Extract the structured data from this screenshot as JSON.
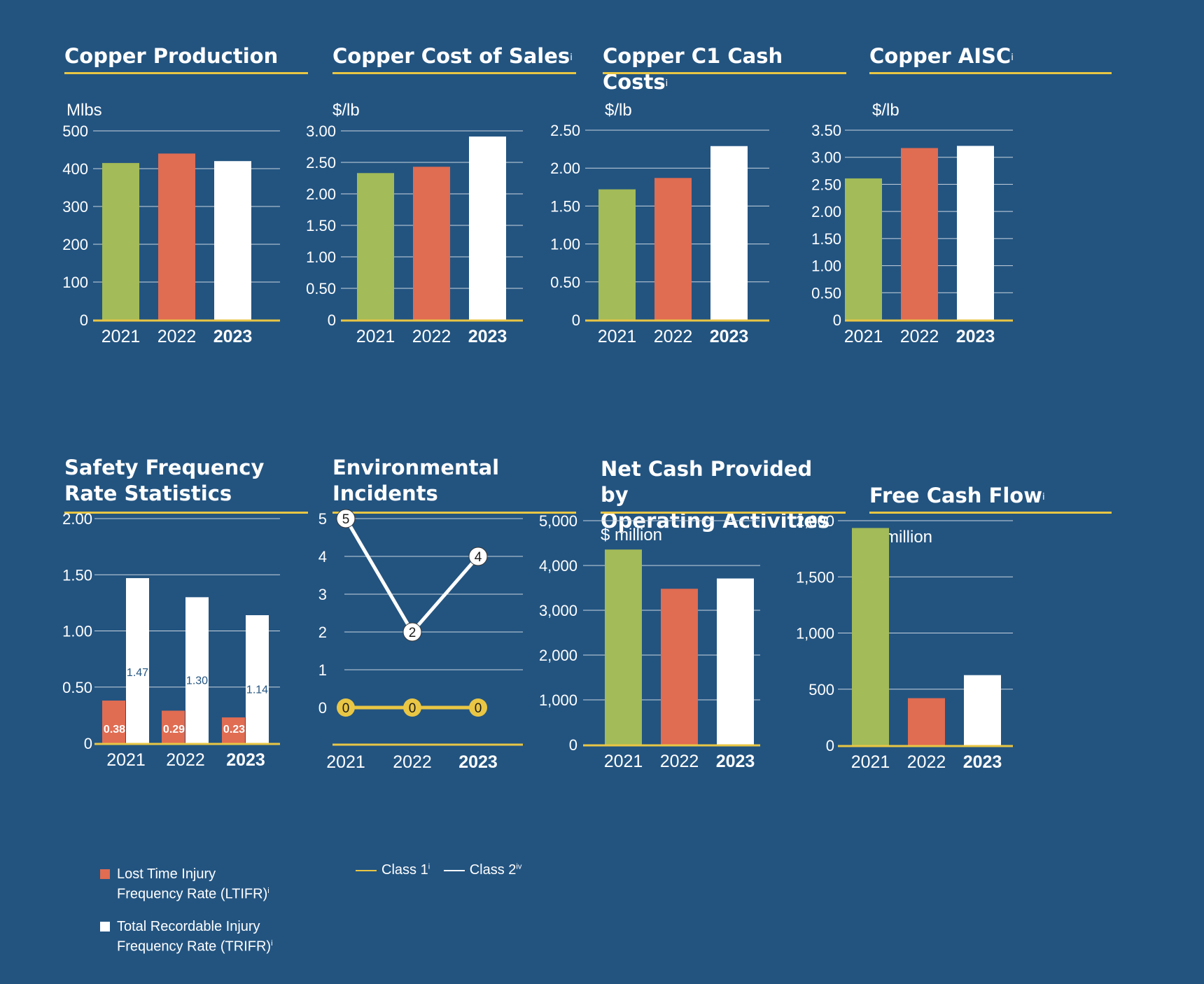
{
  "colors": {
    "background": "#235480",
    "rule": "#e9c644",
    "y2021": "#a3bb58",
    "y2022": "#e06c52",
    "y2023": "#ffffff",
    "grid": "#c9d3de",
    "class1": "#e9c644",
    "class2": "#ffffff",
    "label_dark": "#235480"
  },
  "panels": {
    "p1": {
      "title": "Copper Production",
      "sup": "",
      "unit": "Mlbs"
    },
    "p2": {
      "title": "Copper Cost of Sales",
      "sup": "i",
      "unit": "$/lb"
    },
    "p3": {
      "title": "Copper C1 Cash Costs",
      "sup": "i",
      "unit": "$/lb"
    },
    "p4": {
      "title": "Copper AISC",
      "sup": "i",
      "unit": "$/lb"
    },
    "p5": {
      "title_line1": "Safety Frequency",
      "title_line2": "Rate Statistics"
    },
    "p6": {
      "title_line1": "Environmental",
      "title_line2": "Incidents"
    },
    "p7": {
      "title_line1": "Net Cash Provided by",
      "title_line2": "Operating Activities",
      "unit": "$ million"
    },
    "p8": {
      "title": "Free Cash Flow",
      "sup": "i",
      "unit": "$ million"
    }
  },
  "legend_safety": {
    "ltifr_line1": "Lost Time Injury",
    "ltifr_line2": "Frequency Rate (LTIFR)",
    "ltifr_sup": "i",
    "trifr_line1": "Total Recordable Injury",
    "trifr_line2": "Frequency Rate (TRIFR)",
    "trifr_sup": "i"
  },
  "legend_env": {
    "class1": "Class 1",
    "class1_sup": "i",
    "class2": "Class 2",
    "class2_sup": "iv"
  },
  "chart_data": [
    {
      "id": "copper-production",
      "type": "bar",
      "title": "Copper Production",
      "ylabel": "Mlbs",
      "categories": [
        "2021",
        "2022",
        "2023"
      ],
      "values": [
        415,
        440,
        420
      ],
      "ylim": [
        0,
        500
      ],
      "yticks": [
        0,
        100,
        200,
        300,
        400,
        500
      ],
      "ytick_labels": [
        "0",
        "100",
        "200",
        "300",
        "400",
        "500"
      ]
    },
    {
      "id": "copper-cost-of-sales",
      "type": "bar",
      "title": "Copper Cost of Sales",
      "ylabel": "$/lb",
      "categories": [
        "2021",
        "2022",
        "2023"
      ],
      "values": [
        2.33,
        2.43,
        2.91
      ],
      "ylim": [
        0,
        3.0
      ],
      "yticks": [
        0,
        0.5,
        1.0,
        1.5,
        2.0,
        2.5,
        3.0
      ],
      "ytick_labels": [
        "0",
        "0.50",
        "1.00",
        "1.50",
        "2.00",
        "2.50",
        "3.00"
      ]
    },
    {
      "id": "copper-c1-cash-costs",
      "type": "bar",
      "title": "Copper C1 Cash Costs",
      "ylabel": "$/lb",
      "categories": [
        "2021",
        "2022",
        "2023"
      ],
      "values": [
        1.72,
        1.87,
        2.29
      ],
      "ylim": [
        0,
        2.5
      ],
      "yticks": [
        0,
        0.5,
        1.0,
        1.5,
        2.0,
        2.5
      ],
      "ytick_labels": [
        "0",
        "0.50",
        "1.00",
        "1.50",
        "2.00",
        "2.50"
      ]
    },
    {
      "id": "copper-aisc",
      "type": "bar",
      "title": "Copper AISC",
      "ylabel": "$/lb",
      "categories": [
        "2021",
        "2022",
        "2023"
      ],
      "values": [
        2.61,
        3.17,
        3.21
      ],
      "ylim": [
        0,
        3.5
      ],
      "yticks": [
        0,
        0.5,
        1.0,
        1.5,
        2.0,
        2.5,
        3.0,
        3.5
      ],
      "ytick_labels": [
        "0",
        "0.50",
        "1.00",
        "1.50",
        "2.00",
        "2.50",
        "3.00",
        "3.50"
      ]
    },
    {
      "id": "safety-frequency",
      "type": "bar",
      "title": "Safety Frequency Rate Statistics",
      "categories": [
        "2021",
        "2022",
        "2023"
      ],
      "ylim": [
        0,
        2.0
      ],
      "yticks": [
        0,
        0.5,
        1.0,
        1.5,
        2.0
      ],
      "ytick_labels": [
        "0",
        "0.50",
        "1.00",
        "1.50",
        "2.00"
      ],
      "series": [
        {
          "name": "Lost Time Injury Frequency Rate (LTIFR)",
          "values": [
            0.38,
            0.29,
            0.23
          ],
          "labels": [
            "0.38",
            "0.29",
            "0.23"
          ]
        },
        {
          "name": "Total Recordable Injury Frequency Rate (TRIFR)",
          "values": [
            1.47,
            1.3,
            1.14
          ],
          "labels": [
            "1.47",
            "1.30",
            "1.14"
          ]
        }
      ]
    },
    {
      "id": "environmental-incidents",
      "type": "line",
      "title": "Environmental Incidents",
      "categories": [
        "2021",
        "2022",
        "2023"
      ],
      "ylim": [
        0,
        5
      ],
      "yticks": [
        0,
        1,
        2,
        3,
        4,
        5
      ],
      "ytick_labels": [
        "0",
        "1",
        "2",
        "3",
        "4",
        "5"
      ],
      "series": [
        {
          "name": "Class 1",
          "values": [
            0,
            0,
            0
          ],
          "labels": [
            "0",
            "0",
            "0"
          ]
        },
        {
          "name": "Class 2",
          "values": [
            5,
            2,
            4
          ],
          "labels": [
            "5",
            "2",
            "4"
          ]
        }
      ]
    },
    {
      "id": "net-cash-operating",
      "type": "bar",
      "title": "Net Cash Provided by Operating Activities",
      "ylabel": "$ million",
      "categories": [
        "2021",
        "2022",
        "2023"
      ],
      "values": [
        4356,
        3480,
        3710
      ],
      "ylim": [
        0,
        5000
      ],
      "yticks": [
        0,
        1000,
        2000,
        3000,
        4000,
        5000
      ],
      "ytick_labels": [
        "0",
        "1,000",
        "2,000",
        "3,000",
        "4,000",
        "5,000"
      ]
    },
    {
      "id": "free-cash-flow",
      "type": "bar",
      "title": "Free Cash Flow",
      "ylabel": "$ million",
      "categories": [
        "2021",
        "2022",
        "2023"
      ],
      "values": [
        1935,
        420,
        625
      ],
      "ylim": [
        0,
        2000
      ],
      "yticks": [
        0,
        500,
        1000,
        1500,
        2000
      ],
      "ytick_labels": [
        "0",
        "500",
        "1,000",
        "1,500",
        "2,000"
      ]
    }
  ]
}
